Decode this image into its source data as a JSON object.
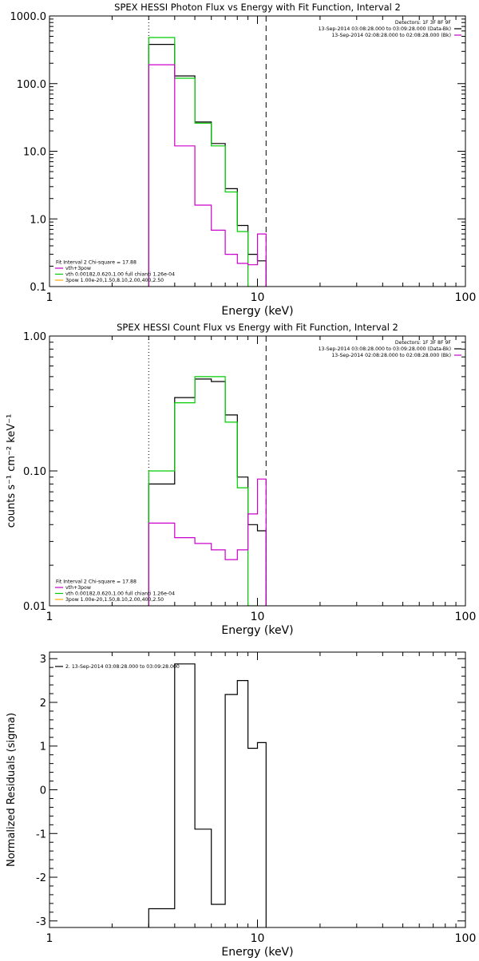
{
  "chart_data": [
    {
      "type": "line",
      "title": "SPEX HESSI Photon Flux vs Energy with Fit Function, Interval 2",
      "xlabel": "Energy (keV)",
      "ylabel": "",
      "xscale": "log",
      "yscale": "log",
      "xlim": [
        1,
        100
      ],
      "ylim": [
        0.1,
        1000
      ],
      "xticks": [
        "1",
        "10",
        "100"
      ],
      "yticks": [
        "0.1",
        "1.0",
        "10.0",
        "100.0",
        "1000.0"
      ],
      "vlines": [
        {
          "x": 3,
          "style": "dotted"
        },
        {
          "x": 11,
          "style": "dashed"
        }
      ],
      "legend_right": [
        {
          "text": "Detectors: 1F 3F 8F 9F",
          "color": ""
        },
        {
          "text": "13-Sep-2014 03:08:28.000 to 03:09:28.000 (Data-Bk)",
          "color": "#000000"
        },
        {
          "text": "13-Sep-2014 02:08:28.000 to 02:08:28.000 (Bk)",
          "color": "#cc00cc"
        }
      ],
      "legend_left": [
        {
          "text": "Fit Interval 2   Chi-square = 17.88",
          "color": ""
        },
        {
          "text": "vth+3pow",
          "color": "#cc00cc"
        },
        {
          "text": "vth 0.00182,0.620,1.00   full chianti 1.26e-04",
          "color": "#00cc00"
        },
        {
          "text": "3pow 1.00e-20,1.50,8.10,2.00,400,2.50",
          "color": "#ffaa00"
        }
      ],
      "series": [
        {
          "color": "#000000",
          "edges": [
            3,
            4,
            5,
            6,
            7,
            8,
            9,
            10,
            11
          ],
          "values": [
            380,
            130,
            27,
            13,
            2.8,
            0.8,
            0.3,
            0.24
          ]
        },
        {
          "color": "#00cc00",
          "edges": [
            3,
            4,
            5,
            6,
            7,
            8,
            9,
            10
          ],
          "values": [
            480,
            120,
            26,
            12,
            2.5,
            0.65,
            0.1
          ]
        },
        {
          "color": "#cc00cc",
          "edges": [
            3,
            4,
            5,
            6,
            7,
            8,
            9,
            10,
            11
          ],
          "values": [
            190,
            12,
            1.6,
            0.68,
            0.3,
            0.22,
            0.21,
            0.6
          ]
        }
      ]
    },
    {
      "type": "line",
      "title": "SPEX HESSI Count Flux vs Energy with Fit Function, Interval 2",
      "xlabel": "Energy (keV)",
      "ylabel": "counts s⁻¹ cm⁻² keV⁻¹",
      "xscale": "log",
      "yscale": "log",
      "xlim": [
        1,
        100
      ],
      "ylim": [
        0.01,
        1
      ],
      "xticks": [
        "1",
        "10",
        "100"
      ],
      "yticks": [
        "0.01",
        "0.10",
        "1.00"
      ],
      "vlines": [
        {
          "x": 3,
          "style": "dotted"
        },
        {
          "x": 11,
          "style": "dashed"
        }
      ],
      "legend_right": [
        {
          "text": "Detectors: 1F 3F 8F 9F",
          "color": ""
        },
        {
          "text": "13-Sep-2014 03:08:28.000 to 03:09:28.000 (Data-Bk)",
          "color": "#000000"
        },
        {
          "text": "13-Sep-2014 02:08:28.000 to 02:08:28.000 (Bk)",
          "color": "#cc00cc"
        }
      ],
      "legend_left": [
        {
          "text": "Fit Interval 2   Chi-square = 17.88",
          "color": ""
        },
        {
          "text": "vth+3pow",
          "color": "#cc00cc"
        },
        {
          "text": "vth 0.00182,0.620,1.00   full chianti 1.26e-04",
          "color": "#00cc00"
        },
        {
          "text": "3pow 1.00e-20,1.50,8.10,2.00,400,2.50",
          "color": "#ffaa00"
        }
      ],
      "series": [
        {
          "color": "#000000",
          "edges": [
            3,
            4,
            5,
            6,
            7,
            8,
            9,
            10,
            11
          ],
          "values": [
            0.08,
            0.35,
            0.48,
            0.46,
            0.26,
            0.09,
            0.04,
            0.036
          ]
        },
        {
          "color": "#00cc00",
          "edges": [
            3,
            4,
            5,
            6,
            7,
            8,
            9,
            10
          ],
          "values": [
            0.1,
            0.32,
            0.5,
            0.5,
            0.23,
            0.075,
            0.01
          ]
        },
        {
          "color": "#cc00cc",
          "edges": [
            3,
            4,
            5,
            6,
            7,
            8,
            9,
            10,
            11
          ],
          "values": [
            0.041,
            0.032,
            0.029,
            0.026,
            0.022,
            0.026,
            0.048,
            0.087
          ]
        }
      ]
    },
    {
      "type": "line",
      "title": "",
      "xlabel": "Energy (keV)",
      "ylabel": "Normalized Residuals (sigma)",
      "xscale": "log",
      "yscale": "linear",
      "xlim": [
        1,
        100
      ],
      "ylim": [
        -3.15,
        3.15
      ],
      "xticks": [
        "1",
        "10",
        "100"
      ],
      "yticks": [
        "-3",
        "-2",
        "-1",
        "0",
        "1",
        "2",
        "3"
      ],
      "vlines": [],
      "legend_right": [],
      "legend_left": [
        {
          "text": "2. 13-Sep-2014 03:08:28.000 to 03:09:28.000",
          "color": "#000000"
        }
      ],
      "series": [
        {
          "color": "#000000",
          "edges": [
            3,
            4,
            5,
            6,
            7,
            8,
            9,
            10,
            11
          ],
          "values": [
            -2.72,
            2.88,
            -0.9,
            -2.62,
            2.18,
            2.5,
            0.95,
            1.08
          ]
        }
      ]
    }
  ]
}
